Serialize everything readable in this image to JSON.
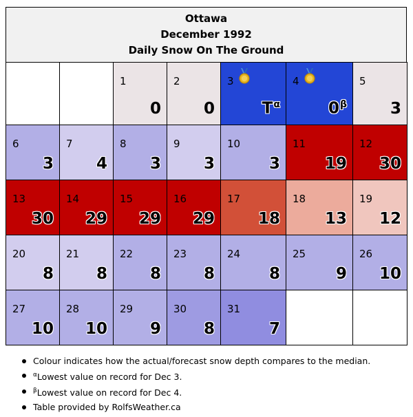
{
  "header": {
    "city": "Ottawa",
    "period": "December 1992",
    "subtitle": "Daily Snow On The Ground"
  },
  "calendar": {
    "rows": [
      [
        {
          "day": "",
          "value": "",
          "color": "#ffffff"
        },
        {
          "day": "",
          "value": "",
          "color": "#ffffff"
        },
        {
          "day": "1",
          "value": "0",
          "color": "#ebe4e6"
        },
        {
          "day": "2",
          "value": "0",
          "color": "#ebe4e6"
        },
        {
          "day": "3",
          "value": "T",
          "sup": "α",
          "color": "#2346d6",
          "medal": true,
          "outlined": true
        },
        {
          "day": "4",
          "value": "0",
          "sup": "β",
          "color": "#2346d6",
          "medal": true,
          "outlined": true
        },
        {
          "day": "5",
          "value": "3",
          "color": "#ebe4e6"
        }
      ],
      [
        {
          "day": "6",
          "value": "3",
          "color": "#b2afe6",
          "outlined": true
        },
        {
          "day": "7",
          "value": "4",
          "color": "#d2cdee",
          "outlined": true
        },
        {
          "day": "8",
          "value": "3",
          "color": "#b2afe6",
          "outlined": true
        },
        {
          "day": "9",
          "value": "3",
          "color": "#d2cdee",
          "outlined": true
        },
        {
          "day": "10",
          "value": "3",
          "color": "#b2afe6",
          "outlined": true
        },
        {
          "day": "11",
          "value": "19",
          "color": "#c00000",
          "outlined": true
        },
        {
          "day": "12",
          "value": "30",
          "color": "#c00000",
          "outlined": true
        }
      ],
      [
        {
          "day": "13",
          "value": "30",
          "color": "#c00000",
          "outlined": true
        },
        {
          "day": "14",
          "value": "29",
          "color": "#c00000",
          "outlined": true
        },
        {
          "day": "15",
          "value": "29",
          "color": "#c00000",
          "outlined": true
        },
        {
          "day": "16",
          "value": "29",
          "color": "#c00000",
          "outlined": true
        },
        {
          "day": "17",
          "value": "18",
          "color": "#d25038",
          "outlined": true
        },
        {
          "day": "18",
          "value": "13",
          "color": "#ecab9c",
          "outlined": true
        },
        {
          "day": "19",
          "value": "12",
          "color": "#f0c6be",
          "outlined": true
        }
      ],
      [
        {
          "day": "20",
          "value": "8",
          "color": "#d2cdee",
          "outlined": true
        },
        {
          "day": "21",
          "value": "8",
          "color": "#d2cdee",
          "outlined": true
        },
        {
          "day": "22",
          "value": "8",
          "color": "#b2afe6",
          "outlined": true
        },
        {
          "day": "23",
          "value": "8",
          "color": "#b2afe6",
          "outlined": true
        },
        {
          "day": "24",
          "value": "8",
          "color": "#b2afe6",
          "outlined": true
        },
        {
          "day": "25",
          "value": "9",
          "color": "#b2afe6",
          "outlined": true
        },
        {
          "day": "26",
          "value": "10",
          "color": "#b2afe6",
          "outlined": true
        }
      ],
      [
        {
          "day": "27",
          "value": "10",
          "color": "#b2afe6",
          "outlined": true
        },
        {
          "day": "28",
          "value": "10",
          "color": "#b2afe6",
          "outlined": true
        },
        {
          "day": "29",
          "value": "9",
          "color": "#b2afe6",
          "outlined": true
        },
        {
          "day": "30",
          "value": "8",
          "color": "#9e9be2",
          "outlined": true
        },
        {
          "day": "31",
          "value": "7",
          "color": "#908de0",
          "outlined": true
        },
        {
          "day": "",
          "value": "",
          "color": "#ffffff"
        },
        {
          "day": "",
          "value": "",
          "color": "#ffffff"
        }
      ]
    ]
  },
  "notes": {
    "colour": "Colour indicates how the actual/forecast snow depth compares to the median.",
    "alpha_sup": "α",
    "alpha": "Lowest value on record for Dec 3.",
    "beta_sup": "β",
    "beta": "Lowest value on record for Dec 4.",
    "credit": "Table provided by RolfsWeather.ca"
  }
}
